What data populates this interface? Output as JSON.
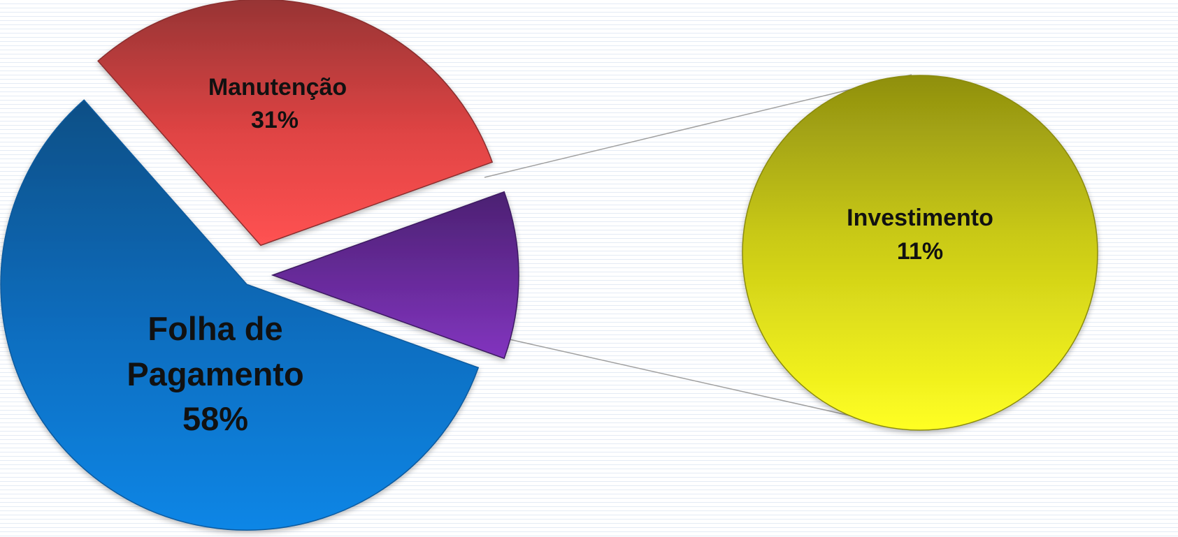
{
  "chart_data": {
    "type": "pie",
    "subtype": "pie-of-pie",
    "slices": [
      {
        "name": "Manutenção",
        "value": 31,
        "label": "31%",
        "color": "#d8403f"
      },
      {
        "name": "Folha de Pagamento",
        "value": 58,
        "label": "58%",
        "color": "#0a6cbc"
      },
      {
        "name": "Investimento",
        "value": 11,
        "label": "11%",
        "color": "#6b2fa2"
      }
    ],
    "secondary_pie": {
      "slices": [
        {
          "name": "Investimento",
          "value": 11,
          "label": "11%",
          "color": "#e6e616"
        }
      ]
    },
    "legend": "none",
    "grid": false
  },
  "labels": {
    "manutencao_name": "Manutenção",
    "manutencao_pct": "31%",
    "folha_name_line1": "Folha de",
    "folha_name_line2": "Pagamento",
    "folha_pct": "58%",
    "investimento_name": "Investimento",
    "investimento_pct": "11%"
  }
}
